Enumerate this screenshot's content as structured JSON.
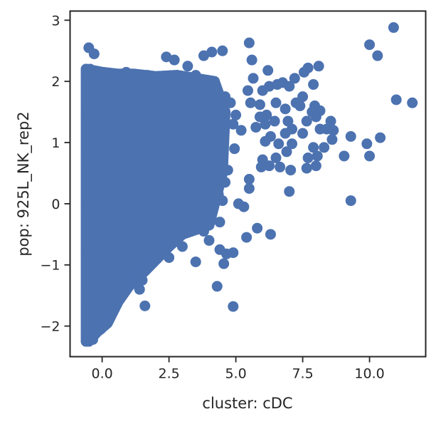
{
  "chart_data": {
    "type": "scatter",
    "title": "",
    "xlabel": "cluster: cDC",
    "ylabel": "pop: 925L_NK_rep2",
    "xlim": [
      -1.2,
      12.1
    ],
    "ylim": [
      -2.5,
      3.15
    ],
    "xticks": [
      0.0,
      2.5,
      5.0,
      7.5,
      10.0
    ],
    "xtick_labels": [
      "0.0",
      "2.5",
      "5.0",
      "7.5",
      "10.0"
    ],
    "yticks": [
      -2,
      -1,
      0,
      1,
      2,
      3
    ],
    "ytick_labels": [
      "−2",
      "−1",
      "0",
      "1",
      "2",
      "3"
    ],
    "grid": false,
    "marker_color": "#4c72b0",
    "axis_color": "#262626",
    "dense_region": {
      "description": "Thousands of overlapping points filling a wedge-shaped cloud",
      "polygon": [
        [
          -0.6,
          -2.25
        ],
        [
          -0.6,
          2.2
        ],
        [
          0.0,
          2.15
        ],
        [
          0.6,
          2.12
        ],
        [
          1.2,
          2.12
        ],
        [
          2.0,
          2.08
        ],
        [
          2.8,
          2.1
        ],
        [
          3.5,
          2.05
        ],
        [
          4.2,
          2.0
        ],
        [
          4.6,
          1.5
        ],
        [
          4.5,
          0.5
        ],
        [
          4.0,
          -0.35
        ],
        [
          3.0,
          -0.5
        ],
        [
          2.5,
          -0.7
        ],
        [
          1.6,
          -1.1
        ],
        [
          1.0,
          -1.35
        ],
        [
          0.6,
          -1.6
        ],
        [
          0.2,
          -1.95
        ],
        [
          -0.2,
          -2.1
        ],
        [
          -0.5,
          -2.25
        ]
      ]
    },
    "points": [
      {
        "x": -0.5,
        "y": 2.55
      },
      {
        "x": -0.3,
        "y": 2.45
      },
      {
        "x": -0.45,
        "y": 2.2
      },
      {
        "x": 0.0,
        "y": 2.15
      },
      {
        "x": 0.9,
        "y": 2.15
      },
      {
        "x": 1.7,
        "y": 2.1
      },
      {
        "x": 2.4,
        "y": 2.4
      },
      {
        "x": 2.7,
        "y": 2.35
      },
      {
        "x": 3.2,
        "y": 2.25
      },
      {
        "x": 3.8,
        "y": 2.42
      },
      {
        "x": 4.1,
        "y": 2.48
      },
      {
        "x": 4.5,
        "y": 2.5
      },
      {
        "x": 3.5,
        "y": 2.1
      },
      {
        "x": 3.9,
        "y": 2.0
      },
      {
        "x": 4.2,
        "y": 1.85
      },
      {
        "x": 4.6,
        "y": 1.75
      },
      {
        "x": 4.8,
        "y": 1.65
      },
      {
        "x": 5.0,
        "y": 1.45
      },
      {
        "x": 4.9,
        "y": 1.3
      },
      {
        "x": 5.2,
        "y": 1.2
      },
      {
        "x": 4.95,
        "y": 0.9
      },
      {
        "x": 4.7,
        "y": 0.55
      },
      {
        "x": 4.6,
        "y": 0.35
      },
      {
        "x": 4.35,
        "y": 0.15
      },
      {
        "x": 4.5,
        "y": 0.05
      },
      {
        "x": 5.1,
        "y": 0.0
      },
      {
        "x": 5.3,
        "y": -0.05
      },
      {
        "x": 3.3,
        "y": -0.1
      },
      {
        "x": 3.7,
        "y": -0.25
      },
      {
        "x": 4.4,
        "y": -0.3
      },
      {
        "x": 3.8,
        "y": -0.45
      },
      {
        "x": 4.0,
        "y": -0.6
      },
      {
        "x": 4.4,
        "y": -0.75
      },
      {
        "x": 4.65,
        "y": -0.82
      },
      {
        "x": 4.9,
        "y": -0.8
      },
      {
        "x": 4.55,
        "y": -0.98
      },
      {
        "x": 3.5,
        "y": -0.95
      },
      {
        "x": 3.0,
        "y": -0.7
      },
      {
        "x": 2.5,
        "y": -0.88
      },
      {
        "x": 2.0,
        "y": -0.85
      },
      {
        "x": 1.7,
        "y": -1.05
      },
      {
        "x": 1.5,
        "y": -1.25
      },
      {
        "x": 1.4,
        "y": -1.4
      },
      {
        "x": 0.9,
        "y": -1.4
      },
      {
        "x": 0.4,
        "y": -1.55
      },
      {
        "x": 0.4,
        "y": -1.68
      },
      {
        "x": 0.1,
        "y": -1.7
      },
      {
        "x": 1.6,
        "y": -1.67
      },
      {
        "x": -0.05,
        "y": -2.05
      },
      {
        "x": -0.5,
        "y": -2.2
      },
      {
        "x": -0.35,
        "y": -2.22
      },
      {
        "x": 4.3,
        "y": -1.35
      },
      {
        "x": 4.9,
        "y": -1.68
      },
      {
        "x": 5.4,
        "y": -0.55
      },
      {
        "x": 5.8,
        "y": -0.4
      },
      {
        "x": 6.3,
        "y": -0.5
      },
      {
        "x": 5.5,
        "y": 2.63
      },
      {
        "x": 5.6,
        "y": 2.35
      },
      {
        "x": 5.65,
        "y": 2.05
      },
      {
        "x": 5.45,
        "y": 1.85
      },
      {
        "x": 5.55,
        "y": 1.65
      },
      {
        "x": 5.9,
        "y": 1.62
      },
      {
        "x": 6.0,
        "y": 1.85
      },
      {
        "x": 6.2,
        "y": 2.18
      },
      {
        "x": 6.25,
        "y": 1.92
      },
      {
        "x": 6.55,
        "y": 1.95
      },
      {
        "x": 6.75,
        "y": 1.98
      },
      {
        "x": 7.0,
        "y": 1.92
      },
      {
        "x": 7.2,
        "y": 2.05
      },
      {
        "x": 7.55,
        "y": 2.15
      },
      {
        "x": 7.7,
        "y": 2.22
      },
      {
        "x": 8.1,
        "y": 2.25
      },
      {
        "x": 7.9,
        "y": 1.95
      },
      {
        "x": 7.5,
        "y": 1.75
      },
      {
        "x": 7.25,
        "y": 1.65
      },
      {
        "x": 6.5,
        "y": 1.65
      },
      {
        "x": 6.85,
        "y": 1.55
      },
      {
        "x": 7.4,
        "y": 1.6
      },
      {
        "x": 7.95,
        "y": 1.6
      },
      {
        "x": 7.85,
        "y": 1.5
      },
      {
        "x": 8.15,
        "y": 1.52
      },
      {
        "x": 8.0,
        "y": 1.42
      },
      {
        "x": 6.15,
        "y": 1.45
      },
      {
        "x": 5.9,
        "y": 1.42
      },
      {
        "x": 5.75,
        "y": 1.25
      },
      {
        "x": 6.1,
        "y": 1.3
      },
      {
        "x": 6.45,
        "y": 1.35
      },
      {
        "x": 6.95,
        "y": 1.35
      },
      {
        "x": 7.65,
        "y": 1.35
      },
      {
        "x": 7.1,
        "y": 1.22
      },
      {
        "x": 6.85,
        "y": 1.15
      },
      {
        "x": 7.5,
        "y": 1.15
      },
      {
        "x": 8.15,
        "y": 1.22
      },
      {
        "x": 8.55,
        "y": 1.35
      },
      {
        "x": 8.4,
        "y": 1.22
      },
      {
        "x": 8.65,
        "y": 1.2
      },
      {
        "x": 9.3,
        "y": 1.1
      },
      {
        "x": 8.6,
        "y": 1.05
      },
      {
        "x": 6.3,
        "y": 1.1
      },
      {
        "x": 6.1,
        "y": 1.02
      },
      {
        "x": 6.6,
        "y": 0.98
      },
      {
        "x": 7.1,
        "y": 0.98
      },
      {
        "x": 6.9,
        "y": 0.85
      },
      {
        "x": 6.5,
        "y": 0.75
      },
      {
        "x": 6.0,
        "y": 0.72
      },
      {
        "x": 6.25,
        "y": 0.62
      },
      {
        "x": 5.95,
        "y": 0.6
      },
      {
        "x": 6.65,
        "y": 0.6
      },
      {
        "x": 7.05,
        "y": 0.55
      },
      {
        "x": 7.7,
        "y": 0.75
      },
      {
        "x": 7.9,
        "y": 0.92
      },
      {
        "x": 8.05,
        "y": 0.78
      },
      {
        "x": 8.3,
        "y": 0.92
      },
      {
        "x": 8.0,
        "y": 0.62
      },
      {
        "x": 7.65,
        "y": 0.58
      },
      {
        "x": 7.0,
        "y": 0.2
      },
      {
        "x": 5.5,
        "y": 0.4
      },
      {
        "x": 5.5,
        "y": 0.25
      },
      {
        "x": 9.05,
        "y": 0.78
      },
      {
        "x": 9.3,
        "y": 0.05
      },
      {
        "x": 9.9,
        "y": 0.98
      },
      {
        "x": 10.0,
        "y": 0.78
      },
      {
        "x": 10.4,
        "y": 1.08
      },
      {
        "x": 10.0,
        "y": 2.6
      },
      {
        "x": 10.3,
        "y": 2.42
      },
      {
        "x": 10.9,
        "y": 2.88
      },
      {
        "x": 11.0,
        "y": 1.7
      },
      {
        "x": 11.6,
        "y": 1.65
      }
    ]
  }
}
